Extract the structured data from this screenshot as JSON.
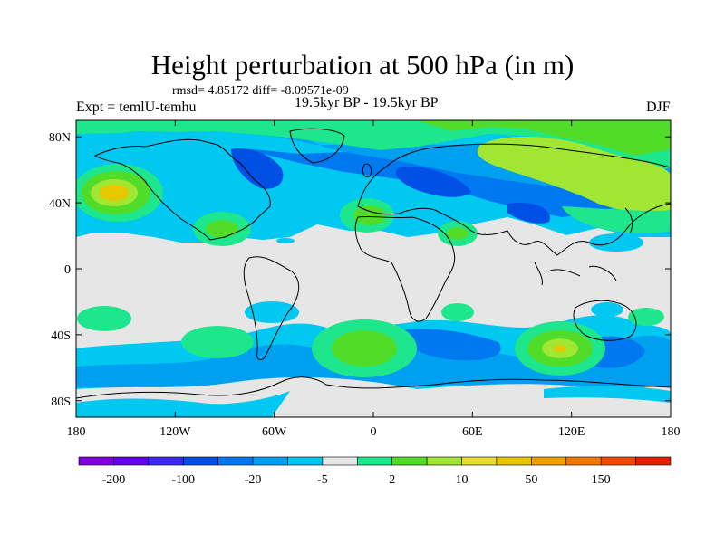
{
  "title": "Height perturbation at 500 hPa (in m)",
  "subtitle_stats": "rmsd= 4.85172  diff= -8.09571e-09",
  "experiment": "Expt = temlU-temhu",
  "period": "19.5kyr BP - 19.5kyr BP",
  "season": "DJF",
  "map": {
    "lon_ticks": [
      {
        "lon": -180,
        "label": "180"
      },
      {
        "lon": -120,
        "label": "120W"
      },
      {
        "lon": -60,
        "label": "60W"
      },
      {
        "lon": 0,
        "label": "0"
      },
      {
        "lon": 60,
        "label": "60E"
      },
      {
        "lon": 120,
        "label": "120E"
      },
      {
        "lon": 180,
        "label": "180"
      }
    ],
    "lat_ticks": [
      {
        "lat": 80,
        "label": "80N"
      },
      {
        "lat": 40,
        "label": "40N"
      },
      {
        "lat": 0,
        "label": "0"
      },
      {
        "lat": -40,
        "label": "40S"
      },
      {
        "lat": -80,
        "label": "80S"
      }
    ],
    "colors": {
      "neutral": "#e6e6e6",
      "cyan": "#00c8f0",
      "lightblue": "#00a0f0",
      "blue": "#0078f0",
      "darkblue": "#0050e6",
      "mint": "#1ee68c",
      "green": "#50dc28",
      "yellowgreen": "#a0e632",
      "gold": "#e6c800",
      "orange": "#f0a000",
      "coastline": "#000000"
    }
  },
  "colorbar": {
    "colors": [
      "#8200dc",
      "#6400f0",
      "#3c28f0",
      "#0050e6",
      "#0078f0",
      "#00a0f0",
      "#00c8f0",
      "#e6e6e6",
      "#1ee68c",
      "#50dc28",
      "#a0e632",
      "#e6dc32",
      "#e6c800",
      "#f0a000",
      "#f07800",
      "#f04b00",
      "#e61e00"
    ],
    "labels": [
      "-200",
      "-100",
      "-20",
      "-5",
      "2",
      "10",
      "50",
      "150"
    ]
  }
}
